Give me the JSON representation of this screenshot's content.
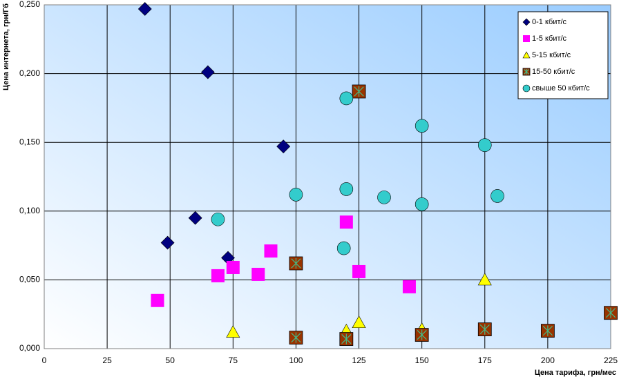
{
  "chart_data": {
    "type": "scatter",
    "x_label": "Цена тарифа, грн/мес",
    "y_label": "Цена интернета, грн/Гб",
    "xlim": [
      0,
      225
    ],
    "xticks": [
      0,
      25,
      50,
      75,
      100,
      125,
      150,
      175,
      200,
      225
    ],
    "ylim": [
      0,
      0.25
    ],
    "yticks": [
      {
        "value": 0,
        "label": "0,000"
      },
      {
        "value": 0.05,
        "label": "0,050"
      },
      {
        "value": 0.1,
        "label": "0,100"
      },
      {
        "value": 0.15,
        "label": "0,150"
      },
      {
        "value": 0.2,
        "label": "0,200"
      },
      {
        "value": 0.25,
        "label": "0,250"
      }
    ],
    "grid": true,
    "legend": "top-right",
    "series": [
      {
        "name": "0-1 кбит/с",
        "color": "#000080",
        "marker": "diamond",
        "x": [
          40,
          65,
          95,
          60,
          49,
          73
        ],
        "y": [
          0.247,
          0.201,
          0.147,
          0.095,
          0.077,
          0.066
        ]
      },
      {
        "name": "1-5 кбит/с",
        "color": "#ff00ff",
        "marker": "square",
        "x": [
          45,
          69,
          75,
          85,
          90,
          120,
          125,
          145
        ],
        "y": [
          0.035,
          0.053,
          0.059,
          0.054,
          0.071,
          0.092,
          0.056,
          0.045
        ]
      },
      {
        "name": "5-15 кбит/с",
        "color": "#ffff00",
        "marker": "triangle",
        "x": [
          75,
          120,
          125,
          150,
          175
        ],
        "y": [
          0.012,
          0.013,
          0.019,
          0.014,
          0.05
        ]
      },
      {
        "name": "15-50 кбит/с",
        "color": "#993300",
        "marker": "square-x",
        "x": [
          100,
          100,
          125,
          120,
          150,
          175,
          200,
          225
        ],
        "y": [
          0.062,
          0.008,
          0.187,
          0.007,
          0.01,
          0.014,
          0.013,
          0.026
        ]
      },
      {
        "name": "свыше 50 кбит/с",
        "color": "#33cccc",
        "marker": "circle",
        "x": [
          120,
          150,
          175,
          100,
          120,
          135,
          150,
          180,
          69,
          119
        ],
        "y": [
          0.182,
          0.162,
          0.148,
          0.112,
          0.116,
          0.11,
          0.105,
          0.111,
          0.094,
          0.073
        ]
      }
    ]
  }
}
